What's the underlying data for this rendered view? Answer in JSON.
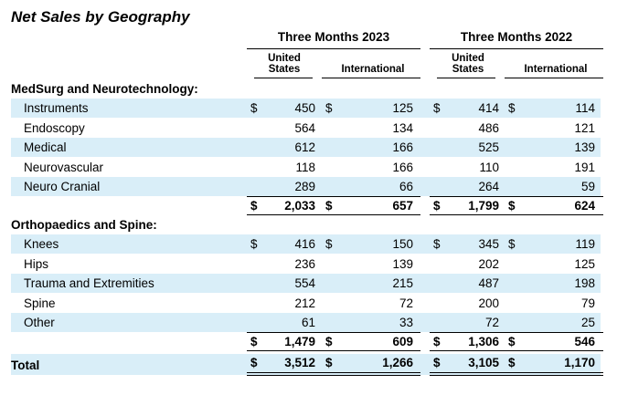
{
  "title": "Net Sales by Geography",
  "periods": [
    "Three Months 2023",
    "Three Months 2022"
  ],
  "columns": [
    "United States",
    "International",
    "United States",
    "International"
  ],
  "currency": "$",
  "sections": [
    {
      "name": "MedSurg and Neurotechnology:",
      "rows": [
        {
          "label": "Instruments",
          "values": [
            "450",
            "125",
            "414",
            "114"
          ]
        },
        {
          "label": "Endoscopy",
          "values": [
            "564",
            "134",
            "486",
            "121"
          ]
        },
        {
          "label": "Medical",
          "values": [
            "612",
            "166",
            "525",
            "139"
          ]
        },
        {
          "label": "Neurovascular",
          "values": [
            "118",
            "166",
            "110",
            "191"
          ]
        },
        {
          "label": "Neuro Cranial",
          "values": [
            "289",
            "66",
            "264",
            "59"
          ]
        }
      ],
      "subtotal": [
        "2,033",
        "657",
        "1,799",
        "624"
      ]
    },
    {
      "name": "Orthopaedics and Spine:",
      "rows": [
        {
          "label": "Knees",
          "values": [
            "416",
            "150",
            "345",
            "119"
          ]
        },
        {
          "label": "Hips",
          "values": [
            "236",
            "139",
            "202",
            "125"
          ]
        },
        {
          "label": "Trauma and Extremities",
          "values": [
            "554",
            "215",
            "487",
            "198"
          ]
        },
        {
          "label": "Spine",
          "values": [
            "212",
            "72",
            "200",
            "79"
          ]
        },
        {
          "label": "Other",
          "values": [
            "61",
            "33",
            "72",
            "25"
          ]
        }
      ],
      "subtotal": [
        "1,479",
        "609",
        "1,306",
        "546"
      ]
    }
  ],
  "total": {
    "label": "Total",
    "values": [
      "3,512",
      "1,266",
      "3,105",
      "1,170"
    ]
  }
}
